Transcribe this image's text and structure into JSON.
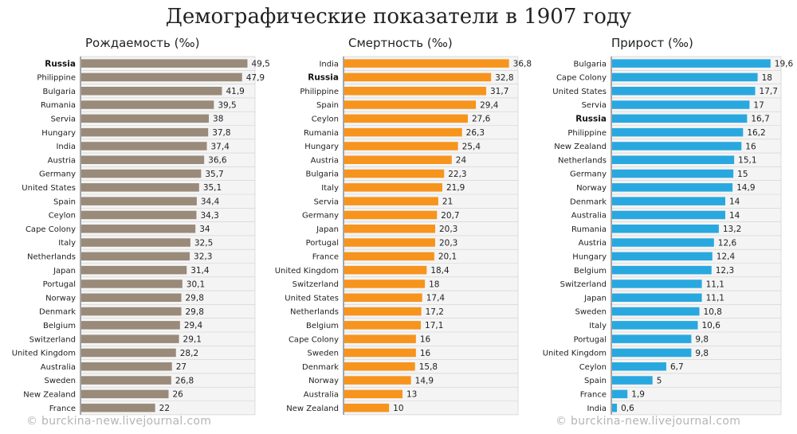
{
  "title": "Демографические показатели в 1907 году",
  "watermark": "© burckina-new.livejournal.com",
  "highlight": "Russia",
  "chart_data": [
    {
      "type": "bar",
      "orientation": "horizontal",
      "title": "Рождаемость (‰)",
      "color": "#9a8a7a",
      "xlim": [
        0,
        52
      ],
      "grid": false,
      "categories": [
        "Russia",
        "Philippine",
        "Bulgaria",
        "Rumania",
        "Servia",
        "Hungary",
        "India",
        "Austria",
        "Germany",
        "United States",
        "Spain",
        "Ceylon",
        "Cape Colony",
        "Italy",
        "Netherlands",
        "Japan",
        "Portugal",
        "Norway",
        "Denmark",
        "Belgium",
        "Switzerland",
        "United Kingdom",
        "Australia",
        "Sweden",
        "New Zealand",
        "France"
      ],
      "values": [
        49.5,
        47.9,
        41.9,
        39.5,
        38,
        37.8,
        37.4,
        36.6,
        35.7,
        35.1,
        34.4,
        34.3,
        34,
        32.5,
        32.3,
        31.4,
        30.1,
        29.8,
        29.8,
        29.4,
        29.1,
        28.2,
        27,
        26.8,
        26,
        22
      ],
      "labels": [
        "49,5",
        "47,9",
        "41,9",
        "39,5",
        "38",
        "37,8",
        "37,4",
        "36,6",
        "35,7",
        "35,1",
        "34,4",
        "34,3",
        "34",
        "32,5",
        "32,3",
        "31,4",
        "30,1",
        "29,8",
        "29,8",
        "29,4",
        "29,1",
        "28,2",
        "27",
        "26,8",
        "26",
        "22"
      ]
    },
    {
      "type": "bar",
      "orientation": "horizontal",
      "title": "Смертность (‰)",
      "color": "#f7941d",
      "xlim": [
        0,
        39
      ],
      "grid": false,
      "categories": [
        "India",
        "Russia",
        "Philippine",
        "Spain",
        "Ceylon",
        "Rumania",
        "Hungary",
        "Austria",
        "Bulgaria",
        "Italy",
        "Servia",
        "Germany",
        "Japan",
        "Portugal",
        "France",
        "United Kingdom",
        "Switzerland",
        "United States",
        "Netherlands",
        "Belgium",
        "Cape Colony",
        "Sweden",
        "Denmark",
        "Norway",
        "Australia",
        "New Zealand"
      ],
      "values": [
        36.8,
        32.8,
        31.7,
        29.4,
        27.6,
        26.3,
        25.4,
        24,
        22.3,
        21.9,
        21,
        20.7,
        20.3,
        20.3,
        20.1,
        18.4,
        18,
        17.4,
        17.2,
        17.1,
        16,
        16,
        15.8,
        14.9,
        13,
        10
      ],
      "labels": [
        "36,8",
        "32,8",
        "31,7",
        "29,4",
        "27,6",
        "26,3",
        "25,4",
        "24",
        "22,3",
        "21,9",
        "21",
        "20,7",
        "20,3",
        "20,3",
        "20,1",
        "18,4",
        "18",
        "17,4",
        "17,2",
        "17,1",
        "16",
        "16",
        "15,8",
        "14,9",
        "13",
        "10"
      ]
    },
    {
      "type": "bar",
      "orientation": "horizontal",
      "title": "Прирост (‰)",
      "color": "#29a8e0",
      "xlim": [
        0,
        21
      ],
      "grid": false,
      "categories": [
        "Bulgaria",
        "Cape Colony",
        "United States",
        "Servia",
        "Russia",
        "Philippine",
        "New Zealand",
        "Netherlands",
        "Germany",
        "Norway",
        "Denmark",
        "Australia",
        "Rumania",
        "Austria",
        "Hungary",
        "Belgium",
        "Switzerland",
        "Japan",
        "Sweden",
        "Italy",
        "Portugal",
        "United Kingdom",
        "Ceylon",
        "Spain",
        "France",
        "India"
      ],
      "values": [
        19.6,
        18,
        17.7,
        17,
        16.7,
        16.2,
        16,
        15.1,
        15,
        14.9,
        14,
        14,
        13.2,
        12.6,
        12.4,
        12.3,
        11.1,
        11.1,
        10.8,
        10.6,
        9.8,
        9.8,
        6.7,
        5,
        1.9,
        0.6
      ],
      "labels": [
        "19,6",
        "18",
        "17,7",
        "17",
        "16,7",
        "16,2",
        "16",
        "15,1",
        "15",
        "14,9",
        "14",
        "14",
        "13,2",
        "12,6",
        "12,4",
        "12,3",
        "11,1",
        "11,1",
        "10,8",
        "10,6",
        "9,8",
        "9,8",
        "6,7",
        "5",
        "1,9",
        "0,6"
      ]
    }
  ]
}
